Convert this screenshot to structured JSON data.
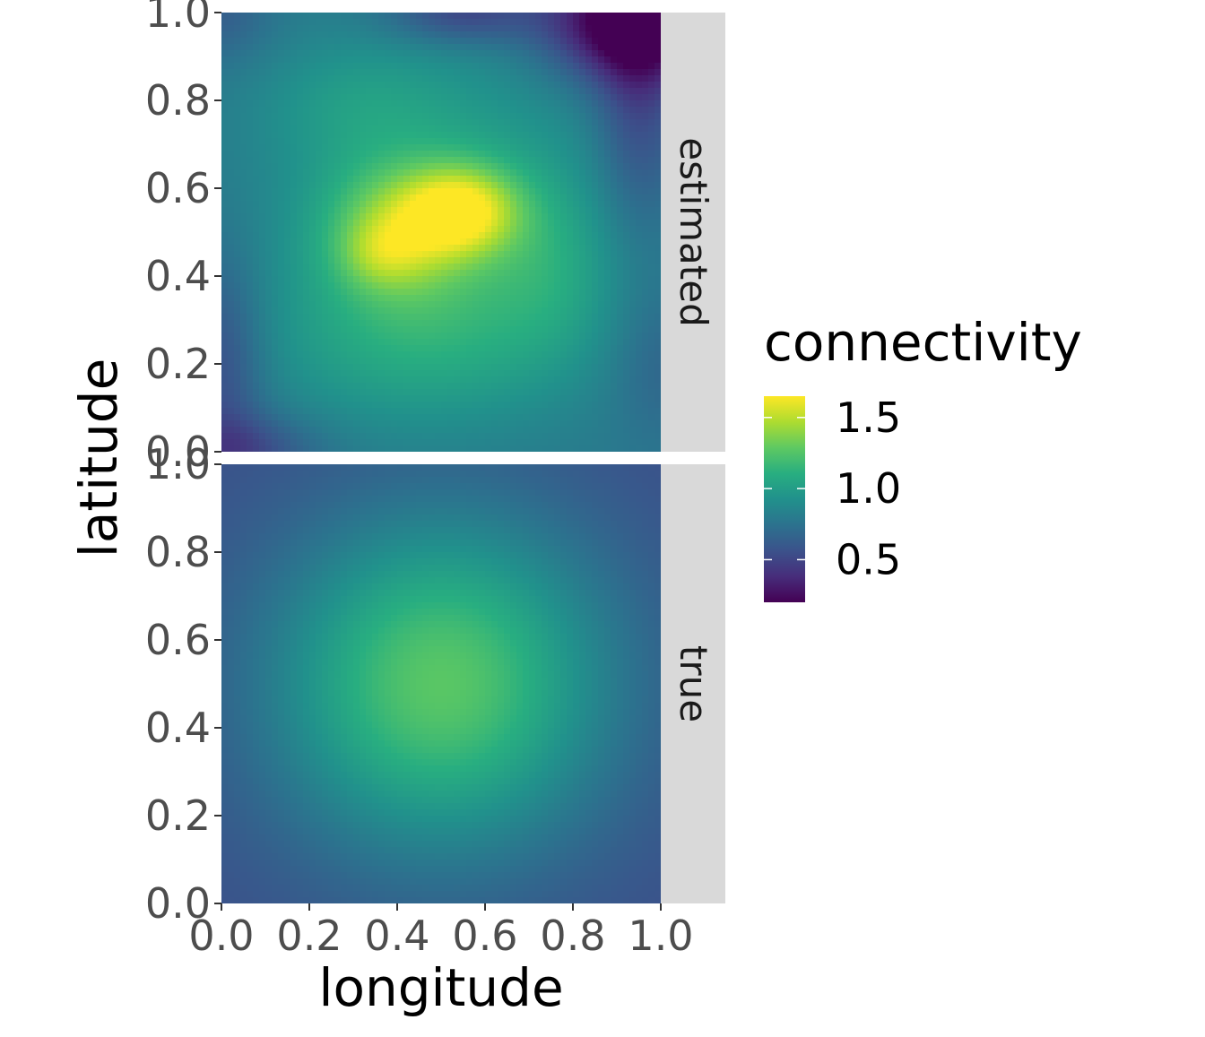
{
  "chart_data": {
    "type": "heatmap",
    "title": "",
    "xlabel": "longitude",
    "ylabel": "latitude",
    "xlim": [
      0,
      1
    ],
    "ylim": [
      0,
      1
    ],
    "x_ticks": [
      "0.0",
      "0.2",
      "0.4",
      "0.6",
      "0.8",
      "1.0"
    ],
    "y_ticks": [
      "0.0",
      "0.2",
      "0.4",
      "0.6",
      "0.8",
      "1.0"
    ],
    "x_tick_values": [
      0,
      0.2,
      0.4,
      0.6,
      0.8,
      1.0
    ],
    "y_tick_values": [
      0,
      0.2,
      0.4,
      0.6,
      0.8,
      1.0
    ],
    "colorscale": "viridis",
    "legend": {
      "title": "connectivity",
      "placement": "right",
      "range": [
        0.2,
        1.65
      ],
      "ticks": [
        "0.5",
        "1.0",
        "1.5"
      ],
      "tick_values": [
        0.5,
        1.0,
        1.5
      ]
    },
    "panels": [
      {
        "strip": "estimated",
        "description_values": {
          "peak_location": [
            0.55,
            0.55
          ],
          "peak_value": 1.6,
          "min_location": [
            0.92,
            0.98
          ],
          "min_value": 0.2
        }
      },
      {
        "strip": "true",
        "description_values": {
          "peak_location": [
            0.5,
            0.5
          ],
          "peak_value": 1.3,
          "corner_value": 0.6
        }
      }
    ],
    "grid": false
  }
}
